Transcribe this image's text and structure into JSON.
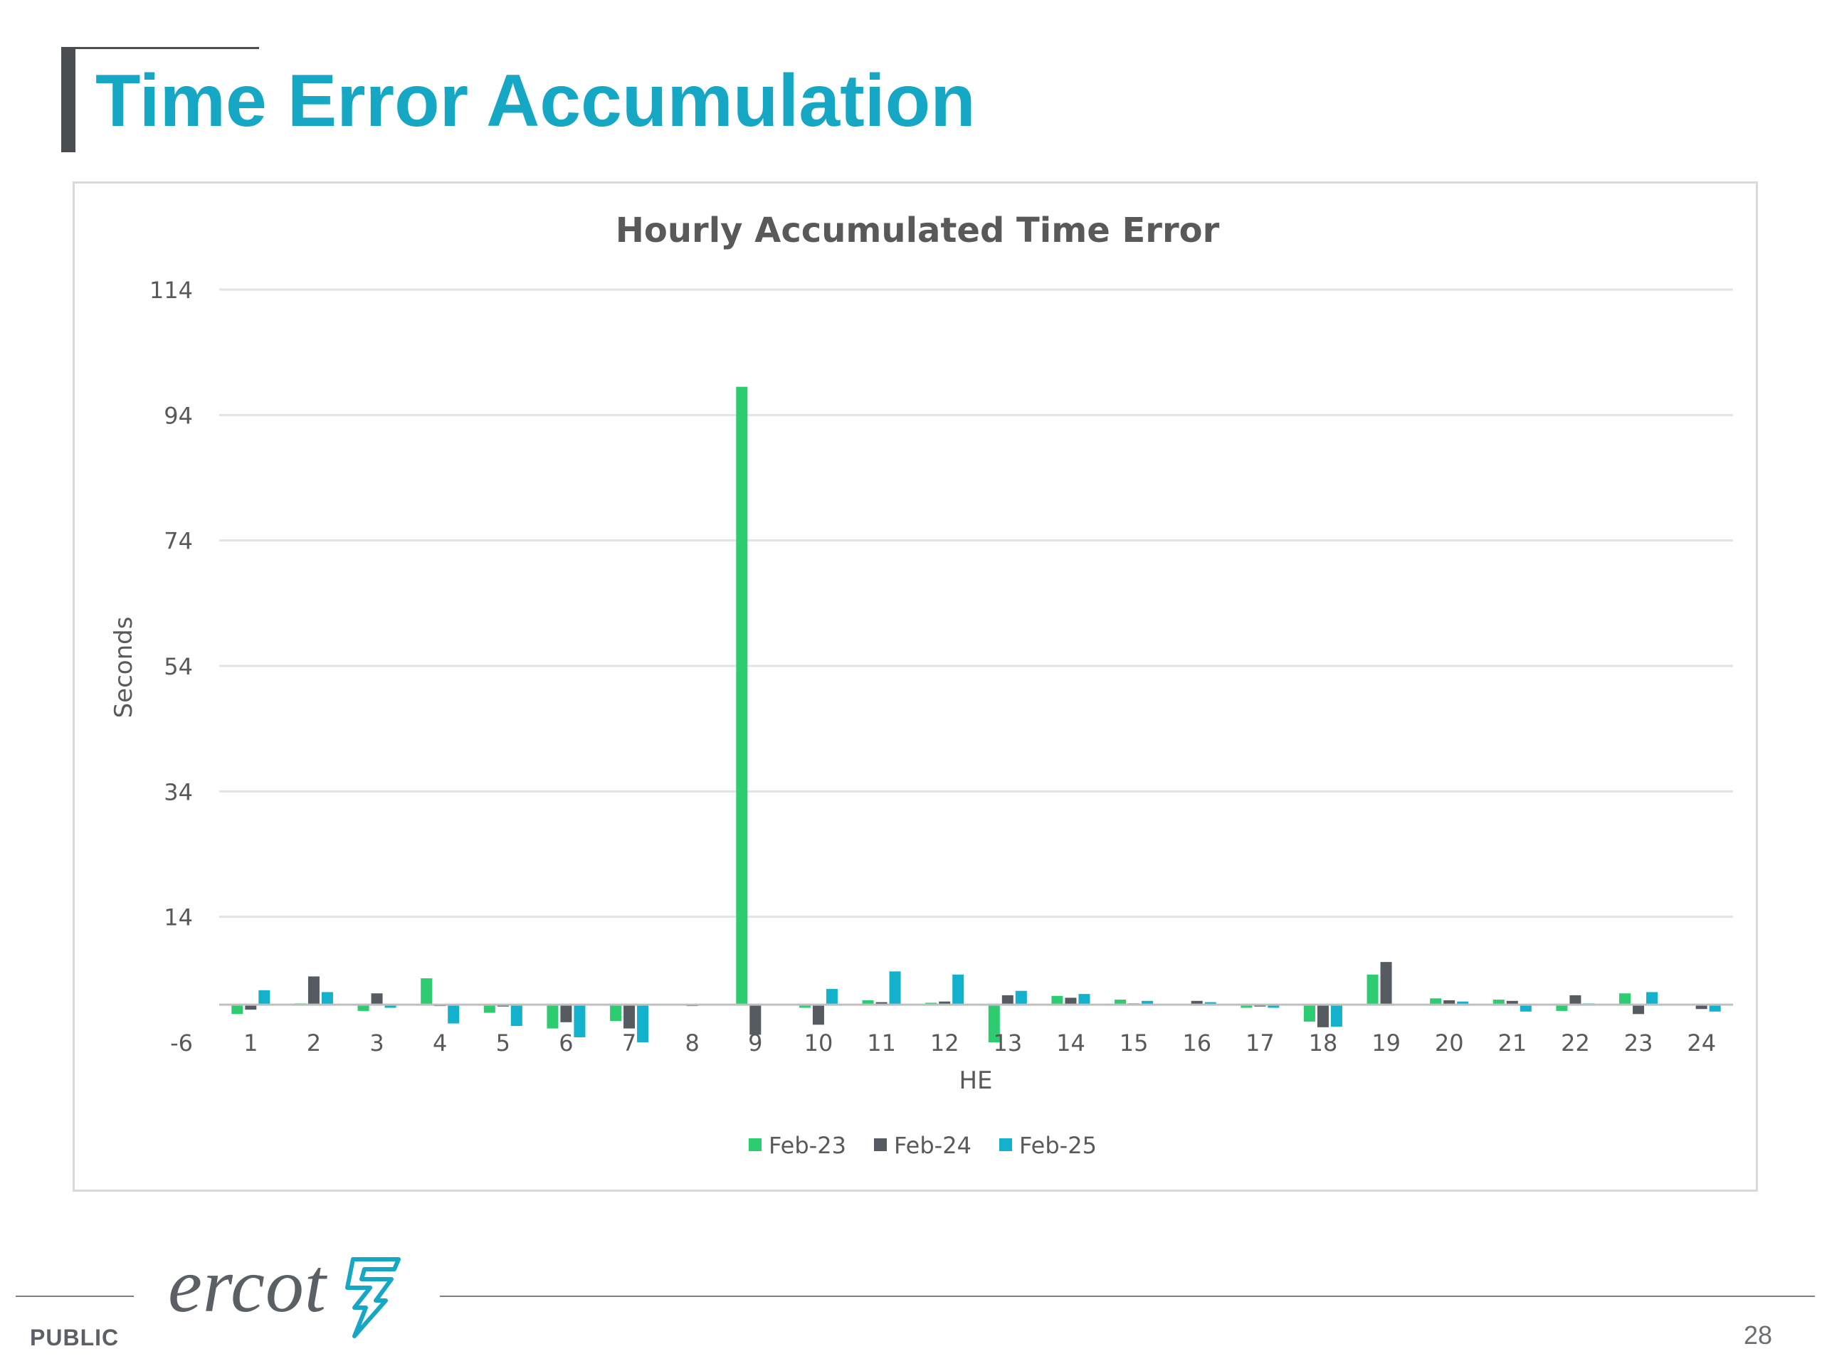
{
  "slide": {
    "title": "Time Error Accumulation",
    "public_label": "PUBLIC",
    "page_number": "28",
    "logo_text": "ercot",
    "logo_icon": "ercot-star-bolt-icon"
  },
  "colors": {
    "title": "#16a7c4",
    "feb23": "#2ecc71",
    "feb24": "#555b60",
    "feb25": "#14b1cc"
  },
  "chart_data": {
    "type": "bar",
    "title": "Hourly Accumulated Time Error",
    "xlabel": "HE",
    "ylabel": "Seconds",
    "ylim": [
      -6,
      114
    ],
    "yticks": [
      -6,
      14,
      34,
      54,
      74,
      94,
      114
    ],
    "grid": true,
    "legend_position": "bottom",
    "categories": [
      "1",
      "2",
      "3",
      "4",
      "5",
      "6",
      "7",
      "8",
      "9",
      "10",
      "11",
      "12",
      "13",
      "14",
      "15",
      "16",
      "17",
      "18",
      "19",
      "20",
      "21",
      "22",
      "23",
      "24"
    ],
    "series": [
      {
        "name": "Feb-23",
        "color": "#2ecc71",
        "values": [
          -1.5,
          0.2,
          -1,
          4.2,
          -1.3,
          -3.8,
          -2.6,
          0,
          98.5,
          -0.5,
          0.7,
          0.3,
          -6,
          1.4,
          0.8,
          0,
          -0.5,
          -2.7,
          4.8,
          1,
          0.8,
          -1,
          1.8,
          0
        ]
      },
      {
        "name": "Feb-24",
        "color": "#555b60",
        "values": [
          -0.8,
          4.5,
          1.8,
          -0.2,
          -0.3,
          -2.8,
          -3.8,
          -0.2,
          -4.8,
          -3.2,
          0.4,
          0.5,
          1.5,
          1.1,
          0.2,
          0.6,
          -0.3,
          -3.6,
          6.8,
          0.7,
          0.6,
          1.5,
          -1.5,
          -0.7
        ]
      },
      {
        "name": "Feb-25",
        "color": "#14b1cc",
        "values": [
          2.3,
          2,
          -0.5,
          -3,
          -3.4,
          -5.2,
          -6,
          0,
          0,
          2.5,
          5.3,
          4.8,
          2.2,
          1.7,
          0.6,
          0.4,
          -0.5,
          -3.5,
          0,
          0.5,
          -1.1,
          0.2,
          2,
          -1.1
        ]
      }
    ]
  }
}
